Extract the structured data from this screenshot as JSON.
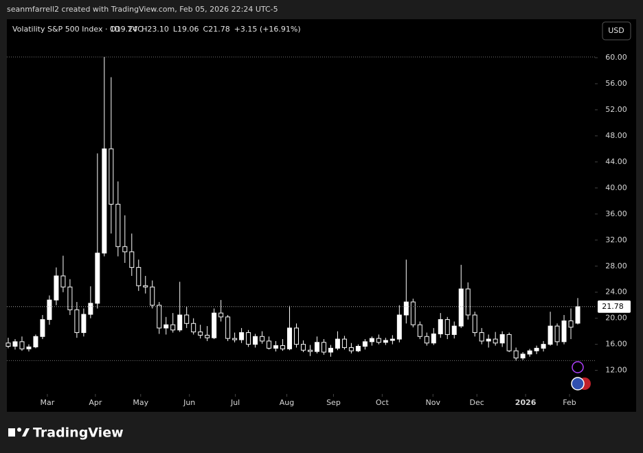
{
  "chart_data": {
    "type": "candlestick",
    "attribution": "seanmfarrell2 created with TradingView.com, Feb 05, 2026 22:24 UTC-5",
    "symbol": "Volatility S&P 500 Index · 1D · TVC",
    "ohlc_labels": [
      "O19.24",
      "H23.10",
      "L19.06",
      "C21.78",
      "+3.15 (+16.91%)"
    ],
    "currency": "USD",
    "brand": "TradingView",
    "color": "#ffffff",
    "last_price": {
      "value": 21.78,
      "label": "21.78"
    },
    "ylim": [
      8.8,
      65.9
    ],
    "yticks": [
      {
        "value": 12,
        "label": "12.00"
      },
      {
        "value": 16,
        "label": "16.00"
      },
      {
        "value": 20,
        "label": "20.00"
      },
      {
        "value": 24,
        "label": "24.00"
      },
      {
        "value": 28,
        "label": "28.00"
      },
      {
        "value": 32,
        "label": "32.00"
      },
      {
        "value": 36,
        "label": "36.00"
      },
      {
        "value": 40,
        "label": "40.00"
      },
      {
        "value": 44,
        "label": "44.00"
      },
      {
        "value": 48,
        "label": "48.00"
      },
      {
        "value": 52,
        "label": "52.00"
      },
      {
        "value": 56,
        "label": "56.00"
      },
      {
        "value": 60,
        "label": "60.00"
      }
    ],
    "xlim": [
      -0.2,
      85.5
    ],
    "xticks": [
      {
        "value": 5.7,
        "label": "Mar"
      },
      {
        "value": 12.7,
        "label": "Apr"
      },
      {
        "value": 19.3,
        "label": "May"
      },
      {
        "value": 26.4,
        "label": "Jun"
      },
      {
        "value": 33.1,
        "label": "Jul"
      },
      {
        "value": 40.6,
        "label": "Aug"
      },
      {
        "value": 47.4,
        "label": "Sep"
      },
      {
        "value": 54.5,
        "label": "Oct"
      },
      {
        "value": 61.9,
        "label": "Nov"
      },
      {
        "value": 68.3,
        "label": "Dec"
      },
      {
        "value": 75.4,
        "label": "2026"
      },
      {
        "value": 81.8,
        "label": "Feb"
      }
    ],
    "open": [
      16.2,
      15.7,
      16.4,
      15.3,
      15.6,
      17.2,
      19.8,
      22.8,
      26.5,
      24.8,
      21.3,
      17.8,
      20.6,
      22.3,
      30.0,
      46.0,
      37.5,
      31.0,
      30.2,
      27.8,
      25.0,
      24.8,
      22.0,
      18.5,
      19.0,
      18.2,
      20.5,
      19.2,
      17.9,
      17.4,
      17.0,
      20.8,
      20.2,
      16.9,
      16.7,
      17.8,
      16.0,
      17.2,
      16.5,
      15.4,
      15.8,
      15.3,
      18.5,
      16.0,
      15.1,
      14.9,
      16.3,
      14.8,
      15.4,
      16.8,
      15.5,
      15.0,
      15.7,
      16.4,
      16.9,
      16.3,
      16.6,
      16.8,
      20.5,
      22.5,
      19.0,
      17.2,
      16.2,
      17.6,
      19.8,
      17.5,
      18.8,
      24.5,
      20.5,
      17.8,
      16.5,
      16.8,
      16.2,
      17.5,
      15.0,
      13.9,
      14.5,
      15.0,
      15.4,
      16.0,
      18.8,
      16.4,
      19.6,
      19.24
    ],
    "high": [
      17.0,
      16.8,
      17.2,
      16.0,
      17.5,
      20.5,
      23.5,
      27.8,
      29.6,
      26.0,
      22.5,
      21.5,
      24.9,
      45.3,
      60.1,
      57.0,
      41.0,
      35.8,
      33.0,
      29.0,
      26.5,
      25.8,
      22.5,
      20.2,
      20.8,
      25.6,
      21.8,
      20.0,
      19.0,
      18.8,
      21.5,
      22.8,
      20.5,
      17.8,
      18.5,
      18.2,
      17.6,
      18.0,
      17.2,
      16.5,
      16.8,
      21.9,
      19.2,
      16.6,
      15.9,
      17.2,
      16.8,
      15.9,
      18.0,
      17.3,
      16.2,
      16.0,
      16.8,
      17.2,
      17.5,
      17.0,
      17.4,
      22.0,
      29.0,
      23.0,
      19.5,
      17.8,
      18.5,
      20.8,
      20.2,
      19.5,
      28.2,
      25.5,
      21.0,
      18.5,
      17.5,
      17.9,
      18.0,
      17.8,
      15.5,
      14.8,
      15.3,
      15.8,
      16.5,
      21.0,
      19.2,
      20.5,
      21.5,
      23.1
    ],
    "low": [
      15.4,
      15.2,
      15.0,
      14.9,
      15.4,
      16.8,
      19.0,
      22.0,
      24.0,
      20.5,
      17.0,
      17.2,
      20.0,
      21.5,
      29.5,
      33.0,
      29.5,
      28.5,
      26.5,
      24.2,
      23.8,
      21.5,
      17.6,
      17.5,
      17.8,
      17.9,
      18.5,
      17.5,
      16.9,
      16.5,
      16.8,
      19.5,
      16.5,
      16.3,
      16.2,
      15.6,
      15.5,
      16.1,
      15.2,
      14.9,
      15.0,
      15.1,
      15.5,
      14.8,
      14.2,
      14.6,
      14.4,
      14.1,
      15.1,
      15.2,
      14.6,
      14.8,
      15.2,
      15.8,
      16.0,
      15.9,
      16.0,
      16.3,
      19.2,
      18.6,
      16.8,
      15.8,
      15.9,
      17.0,
      16.8,
      16.9,
      18.5,
      19.8,
      17.2,
      16.0,
      15.5,
      15.8,
      15.6,
      14.8,
      13.5,
      13.6,
      14.1,
      14.5,
      14.9,
      15.8,
      15.8,
      16.0,
      16.8,
      19.06
    ],
    "close": [
      15.7,
      16.4,
      15.3,
      15.6,
      17.2,
      19.8,
      22.8,
      26.5,
      24.8,
      21.3,
      17.8,
      20.6,
      22.3,
      30.0,
      46.0,
      37.5,
      31.0,
      30.2,
      27.8,
      25.0,
      24.8,
      22.0,
      18.5,
      19.0,
      18.2,
      20.5,
      19.2,
      17.9,
      17.4,
      17.0,
      20.8,
      20.2,
      16.9,
      16.7,
      17.8,
      16.0,
      17.2,
      16.5,
      15.4,
      15.8,
      15.3,
      18.5,
      16.0,
      15.1,
      14.9,
      16.3,
      14.8,
      15.4,
      16.8,
      15.5,
      15.0,
      15.7,
      16.4,
      16.9,
      16.3,
      16.6,
      16.8,
      20.5,
      22.5,
      19.0,
      17.2,
      16.2,
      17.6,
      19.8,
      17.5,
      18.8,
      24.5,
      20.5,
      17.8,
      16.5,
      16.8,
      16.2,
      17.5,
      15.0,
      13.9,
      14.5,
      15.0,
      15.4,
      16.0,
      18.8,
      16.4,
      19.6,
      18.63,
      21.78
    ]
  }
}
